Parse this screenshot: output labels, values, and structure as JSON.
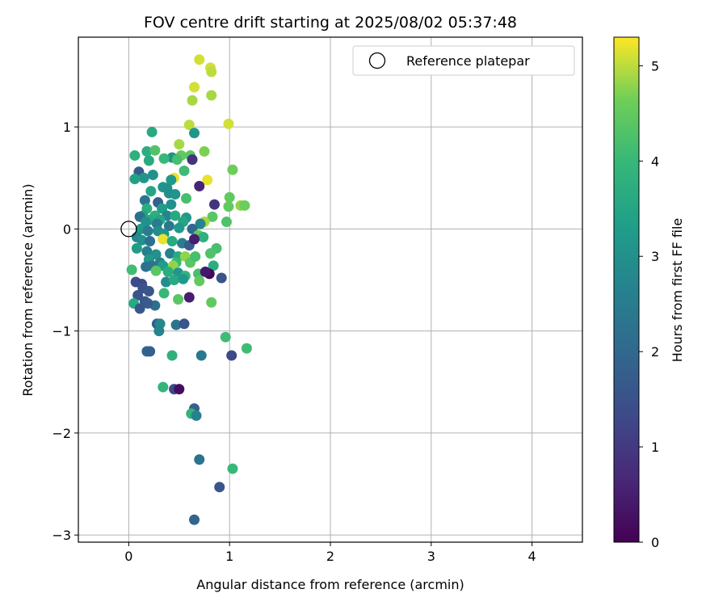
{
  "chart_data": {
    "type": "scatter",
    "title": "FOV centre drift starting at 2025/08/02 05:37:48",
    "xlabel": "Angular distance from reference (arcmin)",
    "ylabel": "Rotation from reference (arcmin)",
    "xlim": [
      -0.5,
      4.5
    ],
    "ylim": [
      -3.07,
      1.88
    ],
    "xticks": [
      "0",
      "1",
      "2",
      "3",
      "4"
    ],
    "yticks": [
      "−3",
      "−2",
      "−1",
      "0",
      "1"
    ],
    "grid": true,
    "legend": {
      "placement": "top-right",
      "entries": [
        "Reference platepar"
      ]
    },
    "reference_point": {
      "x": 0,
      "y": 0
    },
    "colorbar": {
      "label": "Hours from first FF file",
      "colormap": "viridis",
      "range": [
        0,
        5.3
      ],
      "ticks": [
        "0",
        "1",
        "2",
        "3",
        "4",
        "5"
      ]
    },
    "points": [
      [
        0.7,
        1.66,
        5.1
      ],
      [
        0.81,
        1.58,
        5.1
      ],
      [
        0.82,
        1.54,
        5.0
      ],
      [
        0.65,
        1.39,
        5.1
      ],
      [
        0.82,
        1.31,
        4.9
      ],
      [
        0.63,
        1.26,
        4.9
      ],
      [
        0.99,
        1.03,
        5.1
      ],
      [
        0.6,
        1.02,
        5.0
      ],
      [
        0.65,
        0.94,
        3.1
      ],
      [
        0.23,
        0.95,
        3.6
      ],
      [
        0.5,
        0.83,
        4.9
      ],
      [
        0.75,
        0.76,
        4.7
      ],
      [
        0.06,
        0.72,
        3.8
      ],
      [
        0.18,
        0.76,
        3.7
      ],
      [
        0.26,
        0.77,
        4.3
      ],
      [
        0.52,
        0.72,
        4.5
      ],
      [
        0.61,
        0.72,
        4.4
      ],
      [
        0.43,
        0.7,
        3.0
      ],
      [
        0.63,
        0.68,
        0.9
      ],
      [
        0.48,
        0.68,
        4.2
      ],
      [
        0.35,
        0.69,
        4.0
      ],
      [
        0.2,
        0.67,
        3.6
      ],
      [
        1.03,
        0.58,
        4.6
      ],
      [
        0.55,
        0.57,
        4.1
      ],
      [
        0.1,
        0.56,
        1.7
      ],
      [
        0.15,
        0.5,
        3.1
      ],
      [
        0.24,
        0.53,
        3.0
      ],
      [
        0.45,
        0.5,
        5.2
      ],
      [
        0.78,
        0.48,
        5.2
      ],
      [
        0.42,
        0.48,
        3.2
      ],
      [
        0.06,
        0.49,
        3.4
      ],
      [
        0.7,
        0.42,
        0.6
      ],
      [
        0.34,
        0.41,
        3.1
      ],
      [
        0.38,
        0.4,
        3.0
      ],
      [
        0.22,
        0.37,
        3.5
      ],
      [
        0.4,
        0.35,
        2.9
      ],
      [
        0.46,
        0.34,
        3.1
      ],
      [
        1.0,
        0.31,
        4.5
      ],
      [
        0.57,
        0.3,
        4.2
      ],
      [
        0.16,
        0.28,
        2.3
      ],
      [
        0.29,
        0.26,
        1.8
      ],
      [
        0.42,
        0.24,
        3.0
      ],
      [
        0.85,
        0.24,
        0.9
      ],
      [
        1.11,
        0.23,
        4.8
      ],
      [
        1.15,
        0.23,
        4.6
      ],
      [
        0.99,
        0.22,
        4.5
      ],
      [
        0.18,
        0.2,
        3.7
      ],
      [
        0.33,
        0.2,
        3.3
      ],
      [
        0.14,
        0.13,
        3.4
      ],
      [
        0.26,
        0.13,
        3.7
      ],
      [
        0.83,
        0.12,
        4.4
      ],
      [
        0.11,
        0.12,
        2.2
      ],
      [
        0.38,
        0.13,
        2.7
      ],
      [
        0.46,
        0.13,
        3.6
      ],
      [
        0.57,
        0.11,
        3.2
      ],
      [
        0.21,
        0.09,
        3.6
      ],
      [
        0.31,
        0.09,
        3.5
      ],
      [
        0.54,
        0.07,
        3.5
      ],
      [
        0.75,
        0.07,
        4.9
      ],
      [
        0.17,
        0.07,
        3.0
      ],
      [
        0.71,
        0.05,
        2.7
      ],
      [
        0.97,
        0.07,
        4.3
      ],
      [
        0.28,
        0.05,
        2.5
      ],
      [
        0.4,
        0.03,
        2.4
      ],
      [
        0.5,
        0.01,
        3.2
      ],
      [
        0.63,
        0.0,
        2.0
      ],
      [
        0.12,
        0.0,
        3.2
      ],
      [
        0.19,
        -0.02,
        2.5
      ],
      [
        0.29,
        -0.02,
        2.9
      ],
      [
        0.35,
        -0.05,
        3.1
      ],
      [
        0.69,
        -0.06,
        4.5
      ],
      [
        0.74,
        -0.08,
        3.8
      ],
      [
        0.08,
        -0.08,
        2.8
      ],
      [
        0.13,
        -0.11,
        3.0
      ],
      [
        0.21,
        -0.12,
        2.2
      ],
      [
        0.34,
        -0.1,
        5.2
      ],
      [
        0.43,
        -0.12,
        3.6
      ],
      [
        0.53,
        -0.14,
        2.6
      ],
      [
        0.6,
        -0.16,
        1.7
      ],
      [
        0.65,
        -0.1,
        0.5
      ],
      [
        0.87,
        -0.19,
        4.2
      ],
      [
        0.81,
        -0.24,
        4.3
      ],
      [
        0.08,
        -0.19,
        3.3
      ],
      [
        0.18,
        -0.22,
        2.6
      ],
      [
        0.27,
        -0.25,
        3.0
      ],
      [
        0.41,
        -0.24,
        2.6
      ],
      [
        0.49,
        -0.27,
        3.6
      ],
      [
        0.56,
        -0.27,
        4.8
      ],
      [
        0.61,
        -0.33,
        4.4
      ],
      [
        0.66,
        -0.27,
        4.2
      ],
      [
        0.2,
        -0.3,
        3.2
      ],
      [
        0.31,
        -0.33,
        2.6
      ],
      [
        0.47,
        -0.33,
        4.0
      ],
      [
        0.17,
        -0.37,
        2.2
      ],
      [
        0.23,
        -0.36,
        2.3
      ],
      [
        0.34,
        -0.36,
        3.3
      ],
      [
        0.44,
        -0.36,
        4.8
      ],
      [
        0.84,
        -0.36,
        3.7
      ],
      [
        0.03,
        -0.4,
        4.1
      ],
      [
        0.27,
        -0.41,
        4.4
      ],
      [
        0.39,
        -0.42,
        3.7
      ],
      [
        0.49,
        -0.43,
        3.1
      ],
      [
        0.56,
        -0.46,
        3.9
      ],
      [
        0.69,
        -0.44,
        4.2
      ],
      [
        0.8,
        -0.44,
        0.1
      ],
      [
        0.76,
        -0.42,
        0.4
      ],
      [
        0.92,
        -0.48,
        1.5
      ],
      [
        0.07,
        -0.52,
        1.4
      ],
      [
        0.13,
        -0.54,
        1.3
      ],
      [
        0.37,
        -0.52,
        2.9
      ],
      [
        0.45,
        -0.5,
        3.6
      ],
      [
        0.54,
        -0.49,
        3.2
      ],
      [
        0.7,
        -0.51,
        4.5
      ],
      [
        0.14,
        -0.58,
        1.5
      ],
      [
        0.2,
        -0.61,
        1.6
      ],
      [
        0.35,
        -0.63,
        4.0
      ],
      [
        0.09,
        -0.65,
        1.5
      ],
      [
        0.6,
        -0.67,
        0.5
      ],
      [
        0.49,
        -0.69,
        4.4
      ],
      [
        0.82,
        -0.72,
        4.5
      ],
      [
        0.05,
        -0.73,
        3.6
      ],
      [
        0.16,
        -0.71,
        1.6
      ],
      [
        0.26,
        -0.75,
        2.2
      ],
      [
        0.11,
        -0.78,
        1.6
      ],
      [
        0.19,
        -0.73,
        1.7
      ],
      [
        0.28,
        -0.93,
        1.7
      ],
      [
        0.31,
        -0.93,
        2.8
      ],
      [
        0.47,
        -0.94,
        2.3
      ],
      [
        0.55,
        -0.93,
        1.6
      ],
      [
        0.3,
        -1.0,
        2.7
      ],
      [
        0.96,
        -1.06,
        4.1
      ],
      [
        1.17,
        -1.17,
        4.1
      ],
      [
        0.18,
        -1.2,
        1.9
      ],
      [
        0.21,
        -1.2,
        1.8
      ],
      [
        0.43,
        -1.24,
        3.8
      ],
      [
        0.72,
        -1.24,
        2.4
      ],
      [
        1.02,
        -1.24,
        1.3
      ],
      [
        0.34,
        -1.55,
        3.9
      ],
      [
        0.45,
        -1.57,
        1.3
      ],
      [
        0.5,
        -1.57,
        0.2
      ],
      [
        0.65,
        -1.76,
        1.8
      ],
      [
        0.62,
        -1.81,
        3.9
      ],
      [
        0.67,
        -1.83,
        2.6
      ],
      [
        0.7,
        -2.26,
        2.3
      ],
      [
        1.03,
        -2.35,
        4.0
      ],
      [
        0.9,
        -2.53,
        1.6
      ],
      [
        0.65,
        -2.85,
        1.9
      ]
    ]
  }
}
